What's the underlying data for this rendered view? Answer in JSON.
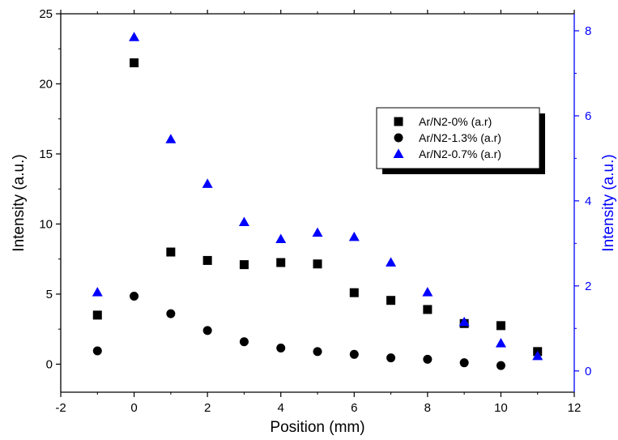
{
  "chart_data": {
    "type": "scatter",
    "xlabel": "Position (mm)",
    "ylabel": "Intensity (a.u.)",
    "ylabel_right": "Intensity (a.u.)",
    "xlim": [
      -2,
      12
    ],
    "ylim": [
      -2,
      25
    ],
    "ylim_right": [
      -0.5,
      8.4
    ],
    "xticks": [
      -2,
      0,
      2,
      4,
      6,
      8,
      10,
      12
    ],
    "yticks": [
      0,
      5,
      10,
      15,
      20,
      25
    ],
    "yticks_right": [
      0,
      2,
      4,
      6,
      8
    ],
    "grid": false,
    "legend_position": "right",
    "colors": {
      "axis": "#000000",
      "right_axis": "#0000ff"
    },
    "series": [
      {
        "name": "Ar/N2-0% (a.r)",
        "marker": "square",
        "color": "#000000",
        "axis": "left",
        "x": [
          -1,
          0,
          1,
          2,
          3,
          4,
          5,
          6,
          7,
          8,
          9,
          10,
          11
        ],
        "y": [
          3.5,
          21.5,
          8.0,
          7.4,
          7.1,
          7.25,
          7.15,
          5.1,
          4.55,
          3.9,
          2.9,
          2.75,
          0.9
        ]
      },
      {
        "name": "Ar/N2-1.3% (a.r)",
        "marker": "circle",
        "color": "#000000",
        "axis": "left",
        "x": [
          -1,
          0,
          1,
          2,
          3,
          4,
          5,
          6,
          7,
          8,
          9,
          10
        ],
        "y": [
          0.95,
          4.85,
          3.6,
          2.4,
          1.6,
          1.15,
          0.9,
          0.7,
          0.45,
          0.35,
          0.1,
          -0.1
        ]
      },
      {
        "name": "Ar/N2-0.7% (a.r)",
        "marker": "triangle",
        "color": "#0000ff",
        "axis": "right",
        "x": [
          -1,
          0,
          1,
          2,
          3,
          4,
          5,
          6,
          7,
          8,
          9,
          10,
          11
        ],
        "y": [
          1.85,
          7.85,
          5.45,
          4.4,
          3.5,
          3.1,
          3.25,
          3.15,
          2.55,
          1.85,
          1.15,
          0.65,
          0.35
        ]
      }
    ]
  }
}
